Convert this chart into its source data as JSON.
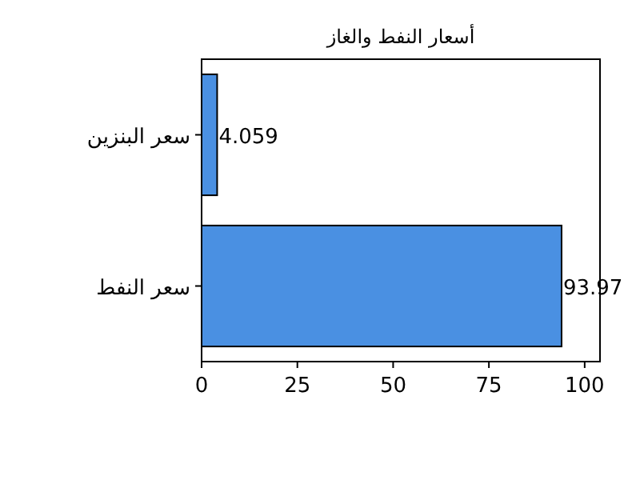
{
  "chart_data": {
    "type": "bar",
    "orientation": "horizontal",
    "title": "أسعار النفط والغاز",
    "categories": [
      "سعر البنزين",
      "سعر النفط"
    ],
    "values": [
      4.059,
      93.97
    ],
    "color": "#4a90e2",
    "xlim": [
      0,
      104
    ],
    "xticks": [
      0,
      25,
      50,
      75,
      100
    ],
    "data_labels": true
  }
}
